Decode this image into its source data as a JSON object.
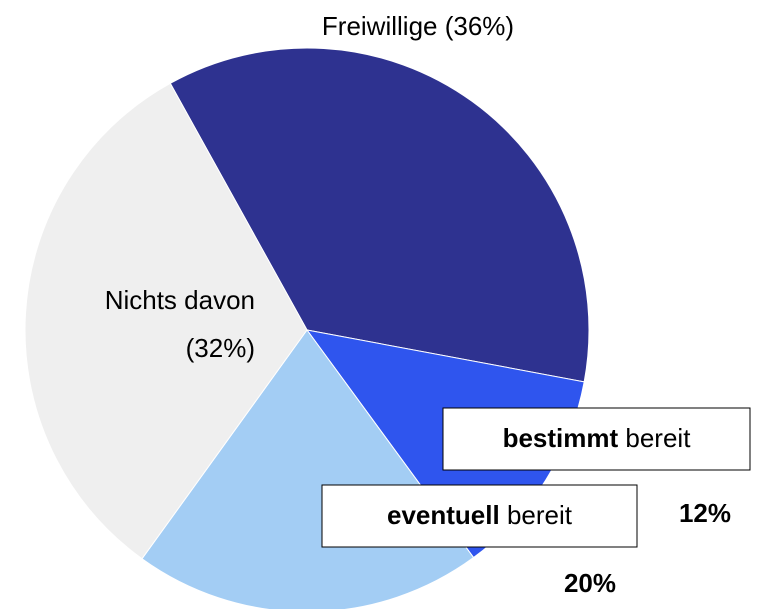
{
  "chart_data": {
    "type": "pie",
    "categories": [
      "Freiwillige",
      "bestimmt bereit",
      "eventuell bereit",
      "Nichts davon"
    ],
    "values": [
      36,
      12,
      20,
      32
    ],
    "value_labels": [
      "(36%)",
      "12%",
      "20%",
      "(32%)"
    ],
    "colors": [
      "#2e3290",
      "#2f55ee",
      "#a3cdf4",
      "#efefef"
    ]
  }
}
